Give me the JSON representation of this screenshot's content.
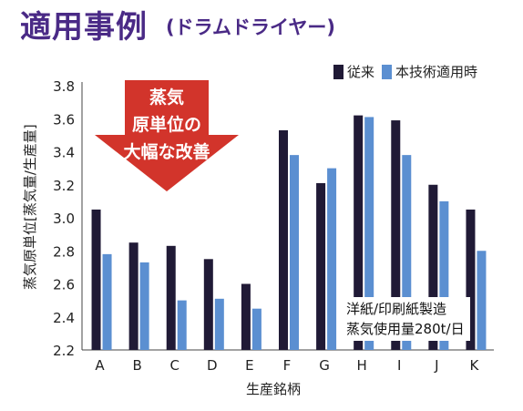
{
  "title": "適用事例",
  "subtitle": "(ドラムドライヤー)",
  "callout": {
    "lines": [
      "蒸気",
      "原単位の",
      "大幅な改善"
    ]
  },
  "note": {
    "lines": [
      "洋紙/印刷紙製造",
      "蒸気使用量280t/日"
    ]
  },
  "colors": {
    "title": "#4a2a86",
    "series_old": "#201a36",
    "series_new": "#5b8fd1",
    "arrow": "#d2342b"
  },
  "chart_data": {
    "type": "bar",
    "xlabel": "生産銘柄",
    "ylabel": "蒸気原単位[蒸気量/生産量]",
    "categories": [
      "A",
      "B",
      "C",
      "D",
      "E",
      "F",
      "G",
      "H",
      "I",
      "J",
      "K"
    ],
    "ylim": [
      2.2,
      3.8
    ],
    "yticks": [
      "2.2",
      "2.4",
      "2.6",
      "2.8",
      "3.0",
      "3.2",
      "3.4",
      "3.6",
      "3.8"
    ],
    "legend_position": "top-right",
    "series": [
      {
        "name": "従来",
        "values": [
          3.05,
          2.85,
          2.83,
          2.75,
          2.6,
          3.53,
          3.21,
          3.62,
          3.59,
          3.2,
          3.05
        ]
      },
      {
        "name": "本技術適用時",
        "values": [
          2.78,
          2.73,
          2.5,
          2.51,
          2.45,
          3.38,
          3.3,
          3.61,
          3.38,
          3.1,
          2.8
        ]
      }
    ]
  }
}
